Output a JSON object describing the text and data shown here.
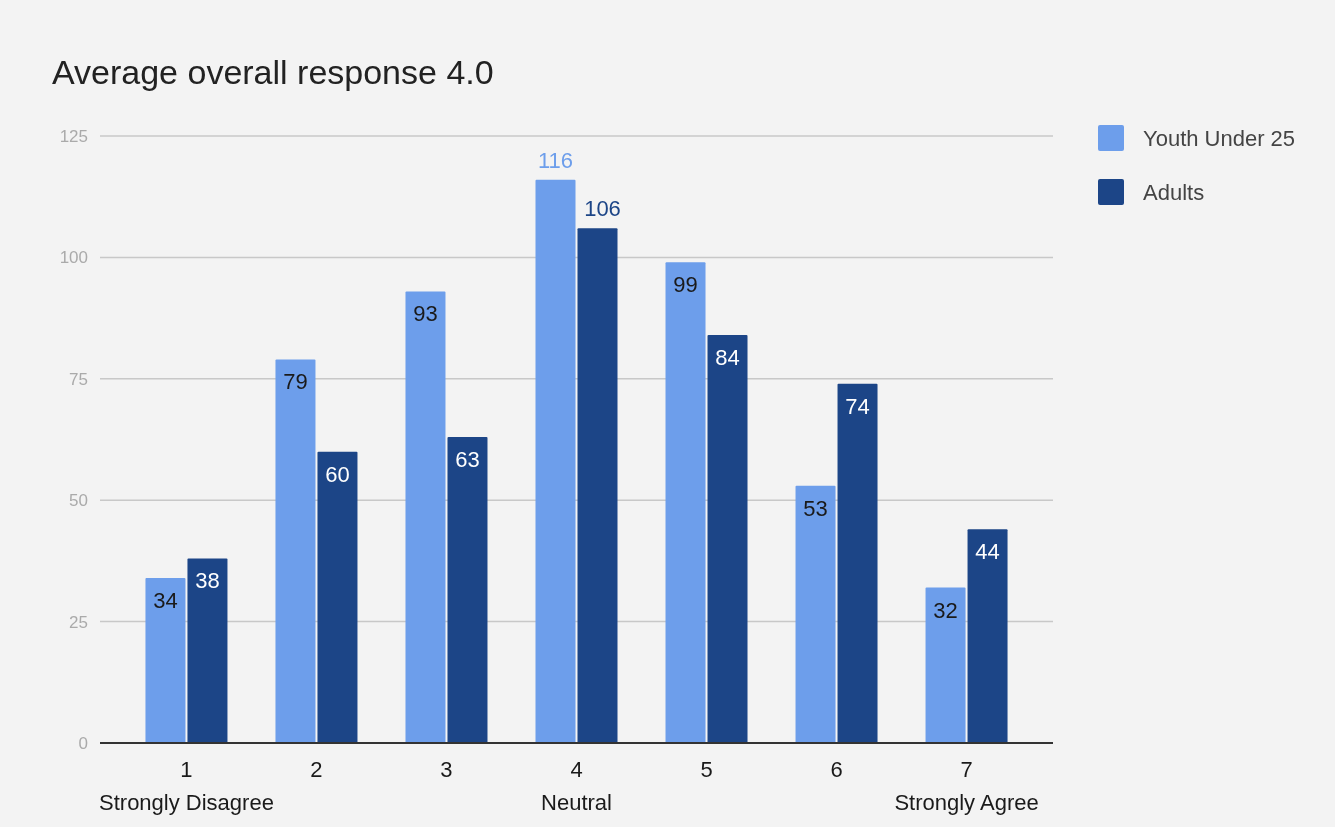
{
  "chart_data": {
    "type": "bar",
    "title": "Average overall response 4.0",
    "categories": [
      "1\nStrongly Disagree",
      "2",
      "3",
      "4\nNeutral",
      "5",
      "6",
      "7\nStrongly Agree"
    ],
    "series": [
      {
        "name": "Youth Under 25",
        "color": "#6d9eeb",
        "values": [
          34,
          79,
          93,
          116,
          99,
          53,
          32
        ]
      },
      {
        "name": "Adults",
        "color": "#1c4587",
        "values": [
          38,
          60,
          63,
          106,
          84,
          74,
          44
        ]
      }
    ],
    "ylim": [
      0,
      125
    ],
    "yticks": [
      0,
      25,
      50,
      75,
      100,
      125
    ],
    "grid": "y",
    "legend": "right",
    "data_labels": true
  }
}
